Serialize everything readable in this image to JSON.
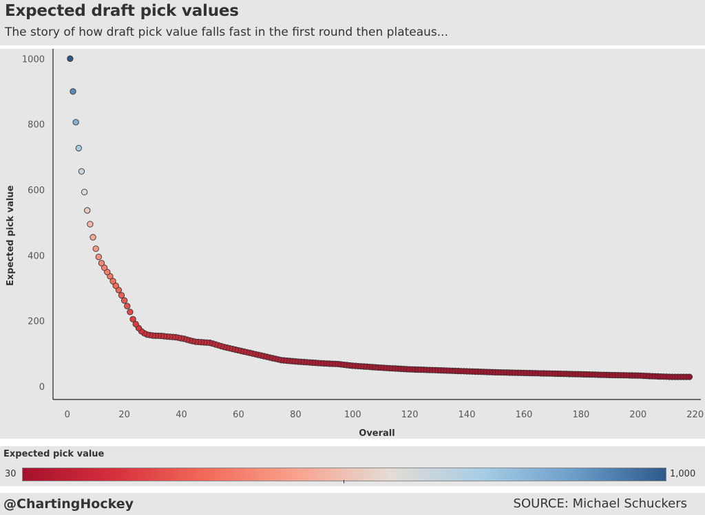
{
  "header": {
    "title": "Expected draft pick values",
    "subtitle": "The story of how draft pick value falls fast in the first round then plateaus..."
  },
  "legend": {
    "title": "Expected pick value",
    "min_label": "30",
    "max_label": "1,000",
    "min_value": 30,
    "max_value": 1000,
    "colors": [
      "#a5112c",
      "#d6303c",
      "#f26b5a",
      "#f8a38e",
      "#e4dcd5",
      "#a7cde6",
      "#6d9dc9",
      "#2e5a89"
    ]
  },
  "footer": {
    "handle": "@ChartingHockey",
    "source": "SOURCE: Michael Schuckers"
  },
  "chart_data": {
    "type": "scatter",
    "title": "Expected draft pick values",
    "subtitle": "The story of how draft pick value falls fast in the first round then plateaus...",
    "xlabel": "Overall",
    "ylabel": "Expected pick value",
    "xlim": [
      -5,
      222
    ],
    "ylim": [
      -40,
      1030
    ],
    "xticks": [
      0,
      20,
      40,
      60,
      80,
      100,
      120,
      140,
      160,
      180,
      200,
      220
    ],
    "yticks": [
      0,
      200,
      400,
      600,
      800,
      1000
    ],
    "grid": false,
    "color_encoding": "Expected pick value",
    "anchors": [
      [
        1,
        1000
      ],
      [
        2,
        900
      ],
      [
        3,
        806
      ],
      [
        4,
        727
      ],
      [
        5,
        656
      ],
      [
        6,
        593
      ],
      [
        7,
        537
      ],
      [
        8,
        495
      ],
      [
        9,
        455
      ],
      [
        10,
        420
      ],
      [
        11,
        395
      ],
      [
        12,
        376
      ],
      [
        13,
        362
      ],
      [
        14,
        349
      ],
      [
        15,
        336
      ],
      [
        16,
        321
      ],
      [
        17,
        307
      ],
      [
        18,
        294
      ],
      [
        19,
        278
      ],
      [
        20,
        262
      ],
      [
        21,
        245
      ],
      [
        22,
        227
      ],
      [
        23,
        205
      ],
      [
        24,
        190
      ],
      [
        25,
        178
      ],
      [
        26,
        168
      ],
      [
        27,
        162
      ],
      [
        28,
        158
      ],
      [
        30,
        155
      ],
      [
        33,
        154
      ],
      [
        35,
        152
      ],
      [
        38,
        150
      ],
      [
        41,
        145
      ],
      [
        43,
        140
      ],
      [
        45,
        136
      ],
      [
        50,
        133
      ],
      [
        55,
        120
      ],
      [
        60,
        110
      ],
      [
        65,
        100
      ],
      [
        70,
        90
      ],
      [
        75,
        80
      ],
      [
        80,
        76
      ],
      [
        90,
        70
      ],
      [
        95,
        68
      ],
      [
        100,
        63
      ],
      [
        110,
        57
      ],
      [
        120,
        52
      ],
      [
        127,
        50
      ],
      [
        140,
        46
      ],
      [
        150,
        43
      ],
      [
        160,
        41
      ],
      [
        170,
        39
      ],
      [
        180,
        37
      ],
      [
        188,
        35
      ],
      [
        200,
        33
      ],
      [
        208,
        30
      ],
      [
        212,
        29
      ],
      [
        218,
        29
      ]
    ]
  }
}
